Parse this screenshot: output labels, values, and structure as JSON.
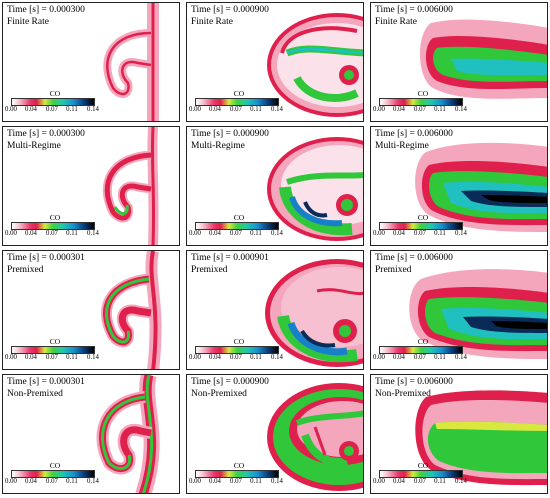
{
  "colorbar": {
    "title": "CO",
    "ticks": [
      "0.00",
      "0.04",
      "0.07",
      "0.11",
      "0.14"
    ]
  },
  "rows": [
    {
      "model": "Finite Rate",
      "times": [
        "Time [s] = 0.000300",
        "Time [s] = 0.000900",
        "Time [s] = 0.006000"
      ]
    },
    {
      "model": "Multi-Regime",
      "times": [
        "Time [s] = 0.000300",
        "Time [s] = 0.000900",
        "Time [s] = 0.006000"
      ]
    },
    {
      "model": "Premixed",
      "times": [
        "Time [s] = 0.000301",
        "Time [s] = 0.000901",
        "Time [s] = 0.006000"
      ]
    },
    {
      "model": "Non-Premixed",
      "times": [
        "Time [s] = 0.000301",
        "Time [s] = 0.000900",
        "Time [s] = 0.006000"
      ]
    }
  ],
  "colors": {
    "low": "#ffffff",
    "pink": "#f4a6bd",
    "red": "#e0204c",
    "yellow": "#d8e840",
    "green": "#30c83a",
    "cyan": "#20c0c0",
    "blue": "#1880c8",
    "navy": "#0a2a58",
    "black": "#000000"
  }
}
